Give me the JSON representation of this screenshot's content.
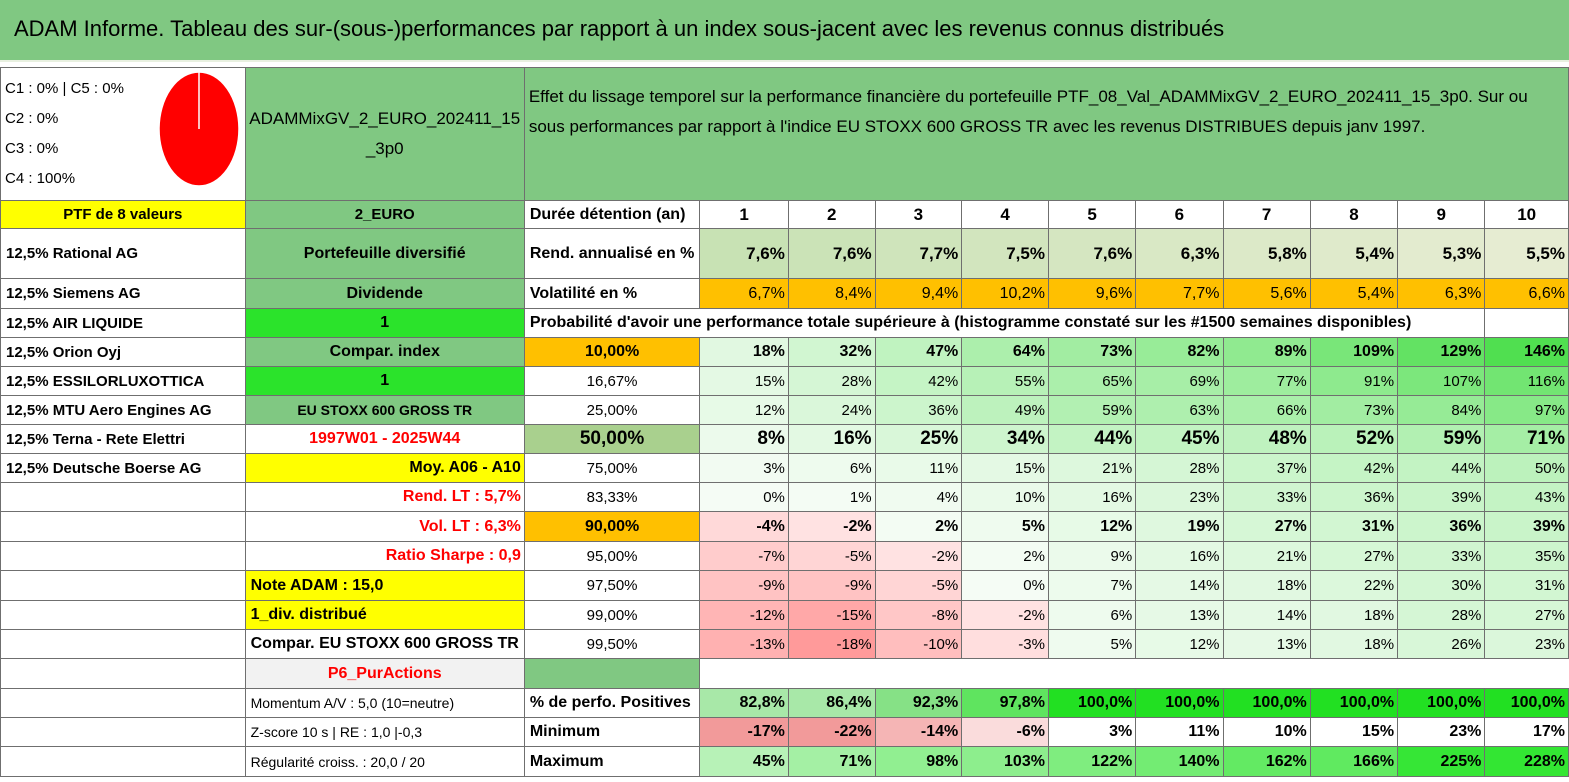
{
  "title": "ADAM Informe. Tableau des sur-(sous-)performances par rapport à un index sous-jacent avec les revenus connus distribués",
  "categories": [
    "C1 : 0% | C5 : 0%",
    "C2 : 0%",
    "C3 : 0%",
    "C4 : 100%"
  ],
  "portfolio_name": "ADAMMixGV_2_EURO_202411_15_3p0",
  "description": "Effet du lissage temporel sur la performance financière du portefeuille PTF_08_Val_ADAMMixGV_2_EURO_202411_15_3p0. Sur ou sous performances par rapport à l'indice EU STOXX 600 GROSS TR avec les revenus DISTRIBUES depuis janv 1997.",
  "ptf_count": "PTF de 8 valeurs",
  "currency": "2_EURO",
  "duration_label": "Durée détention (an)",
  "years": [
    "1",
    "2",
    "3",
    "4",
    "5",
    "6",
    "7",
    "8",
    "9",
    "10"
  ],
  "holdings": [
    "12,5% Rational AG",
    "12,5% Siemens AG",
    "12,5% AIR LIQUIDE",
    "12,5% Orion Oyj",
    "12,5% ESSILORLUXOTTICA",
    "12,5% MTU Aero Engines AG",
    "12,5% Terna - Rete Elettri",
    "12,5% Deutsche Boerse AG"
  ],
  "side": {
    "diversified": "Portefeuille diversifié",
    "dividend": "Dividende",
    "one_a": "1",
    "compar_index": "Compar. index",
    "one_b": "1",
    "index_name": "EU STOXX 600 GROSS TR",
    "period": "1997W01 - 2025W44",
    "moy": "Moy. A06 - A10",
    "rend_lt": "Rend. LT : 5,7%",
    "vol_lt": "Vol. LT : 6,3%",
    "sharpe": "Ratio Sharpe : 0,9",
    "note": "Note ADAM : 15,0",
    "div": "1_div. distribué",
    "compar_full": "Compar. EU STOXX 600 GROSS TR",
    "p6": "P6_PurActions",
    "momentum": "Momentum A/V : 5,0 (10=neutre)",
    "zscore": "Z-score 10 s | RE : 1,0 |-0,3",
    "regularite": "Régularité croiss. : 20,0 / 20"
  },
  "rend_label": "Rend. annualisé en %",
  "rend": [
    "7,6%",
    "7,6%",
    "7,7%",
    "7,5%",
    "7,6%",
    "6,3%",
    "5,8%",
    "5,4%",
    "5,3%",
    "5,5%"
  ],
  "vol_label": "Volatilité en %",
  "vol": [
    "6,7%",
    "8,4%",
    "9,4%",
    "10,2%",
    "9,6%",
    "7,7%",
    "5,6%",
    "5,4%",
    "6,3%",
    "6,6%"
  ],
  "prob_label": "Probabilité d'avoir une performance totale supérieure à (histogramme constaté sur les #1500 semaines disponibles)",
  "prob_rows": [
    {
      "p": "10,00%",
      "v": [
        "18%",
        "32%",
        "47%",
        "64%",
        "73%",
        "82%",
        "89%",
        "109%",
        "129%",
        "146%"
      ]
    },
    {
      "p": "16,67%",
      "v": [
        "15%",
        "28%",
        "42%",
        "55%",
        "65%",
        "69%",
        "77%",
        "91%",
        "107%",
        "116%"
      ]
    },
    {
      "p": "25,00%",
      "v": [
        "12%",
        "24%",
        "36%",
        "49%",
        "59%",
        "63%",
        "66%",
        "73%",
        "84%",
        "97%"
      ]
    },
    {
      "p": "50,00%",
      "v": [
        "8%",
        "16%",
        "25%",
        "34%",
        "44%",
        "45%",
        "48%",
        "52%",
        "59%",
        "71%"
      ]
    },
    {
      "p": "75,00%",
      "v": [
        "3%",
        "6%",
        "11%",
        "15%",
        "21%",
        "28%",
        "37%",
        "42%",
        "44%",
        "50%"
      ]
    },
    {
      "p": "83,33%",
      "v": [
        "0%",
        "1%",
        "4%",
        "10%",
        "16%",
        "23%",
        "33%",
        "36%",
        "39%",
        "43%"
      ]
    },
    {
      "p": "90,00%",
      "v": [
        "-4%",
        "-2%",
        "2%",
        "5%",
        "12%",
        "19%",
        "27%",
        "31%",
        "36%",
        "39%"
      ]
    },
    {
      "p": "95,00%",
      "v": [
        "-7%",
        "-5%",
        "-2%",
        "2%",
        "9%",
        "16%",
        "21%",
        "27%",
        "33%",
        "35%"
      ]
    },
    {
      "p": "97,50%",
      "v": [
        "-9%",
        "-9%",
        "-5%",
        "0%",
        "7%",
        "14%",
        "18%",
        "22%",
        "30%",
        "31%"
      ]
    },
    {
      "p": "99,00%",
      "v": [
        "-12%",
        "-15%",
        "-8%",
        "-2%",
        "6%",
        "13%",
        "14%",
        "18%",
        "28%",
        "27%"
      ]
    },
    {
      "p": "99,50%",
      "v": [
        "-13%",
        "-18%",
        "-10%",
        "-3%",
        "5%",
        "12%",
        "13%",
        "18%",
        "26%",
        "23%"
      ]
    }
  ],
  "pos_label": "% de perfo. Positives",
  "pos": [
    "82,8%",
    "86,4%",
    "92,3%",
    "97,8%",
    "100,0%",
    "100,0%",
    "100,0%",
    "100,0%",
    "100,0%",
    "100,0%"
  ],
  "min_label": "Minimum",
  "min": [
    "-17%",
    "-22%",
    "-14%",
    "-6%",
    "3%",
    "11%",
    "10%",
    "15%",
    "23%",
    "17%"
  ],
  "max_label": "Maximum",
  "max": [
    "45%",
    "71%",
    "98%",
    "103%",
    "122%",
    "140%",
    "162%",
    "166%",
    "225%",
    "228%"
  ],
  "colors": {
    "header_green": "#80c882",
    "yellow": "#ffff00",
    "orange": "#ffc000",
    "bright_green": "#2be32b",
    "red_text": "#ff0000",
    "pie_red": "#ff0000"
  }
}
